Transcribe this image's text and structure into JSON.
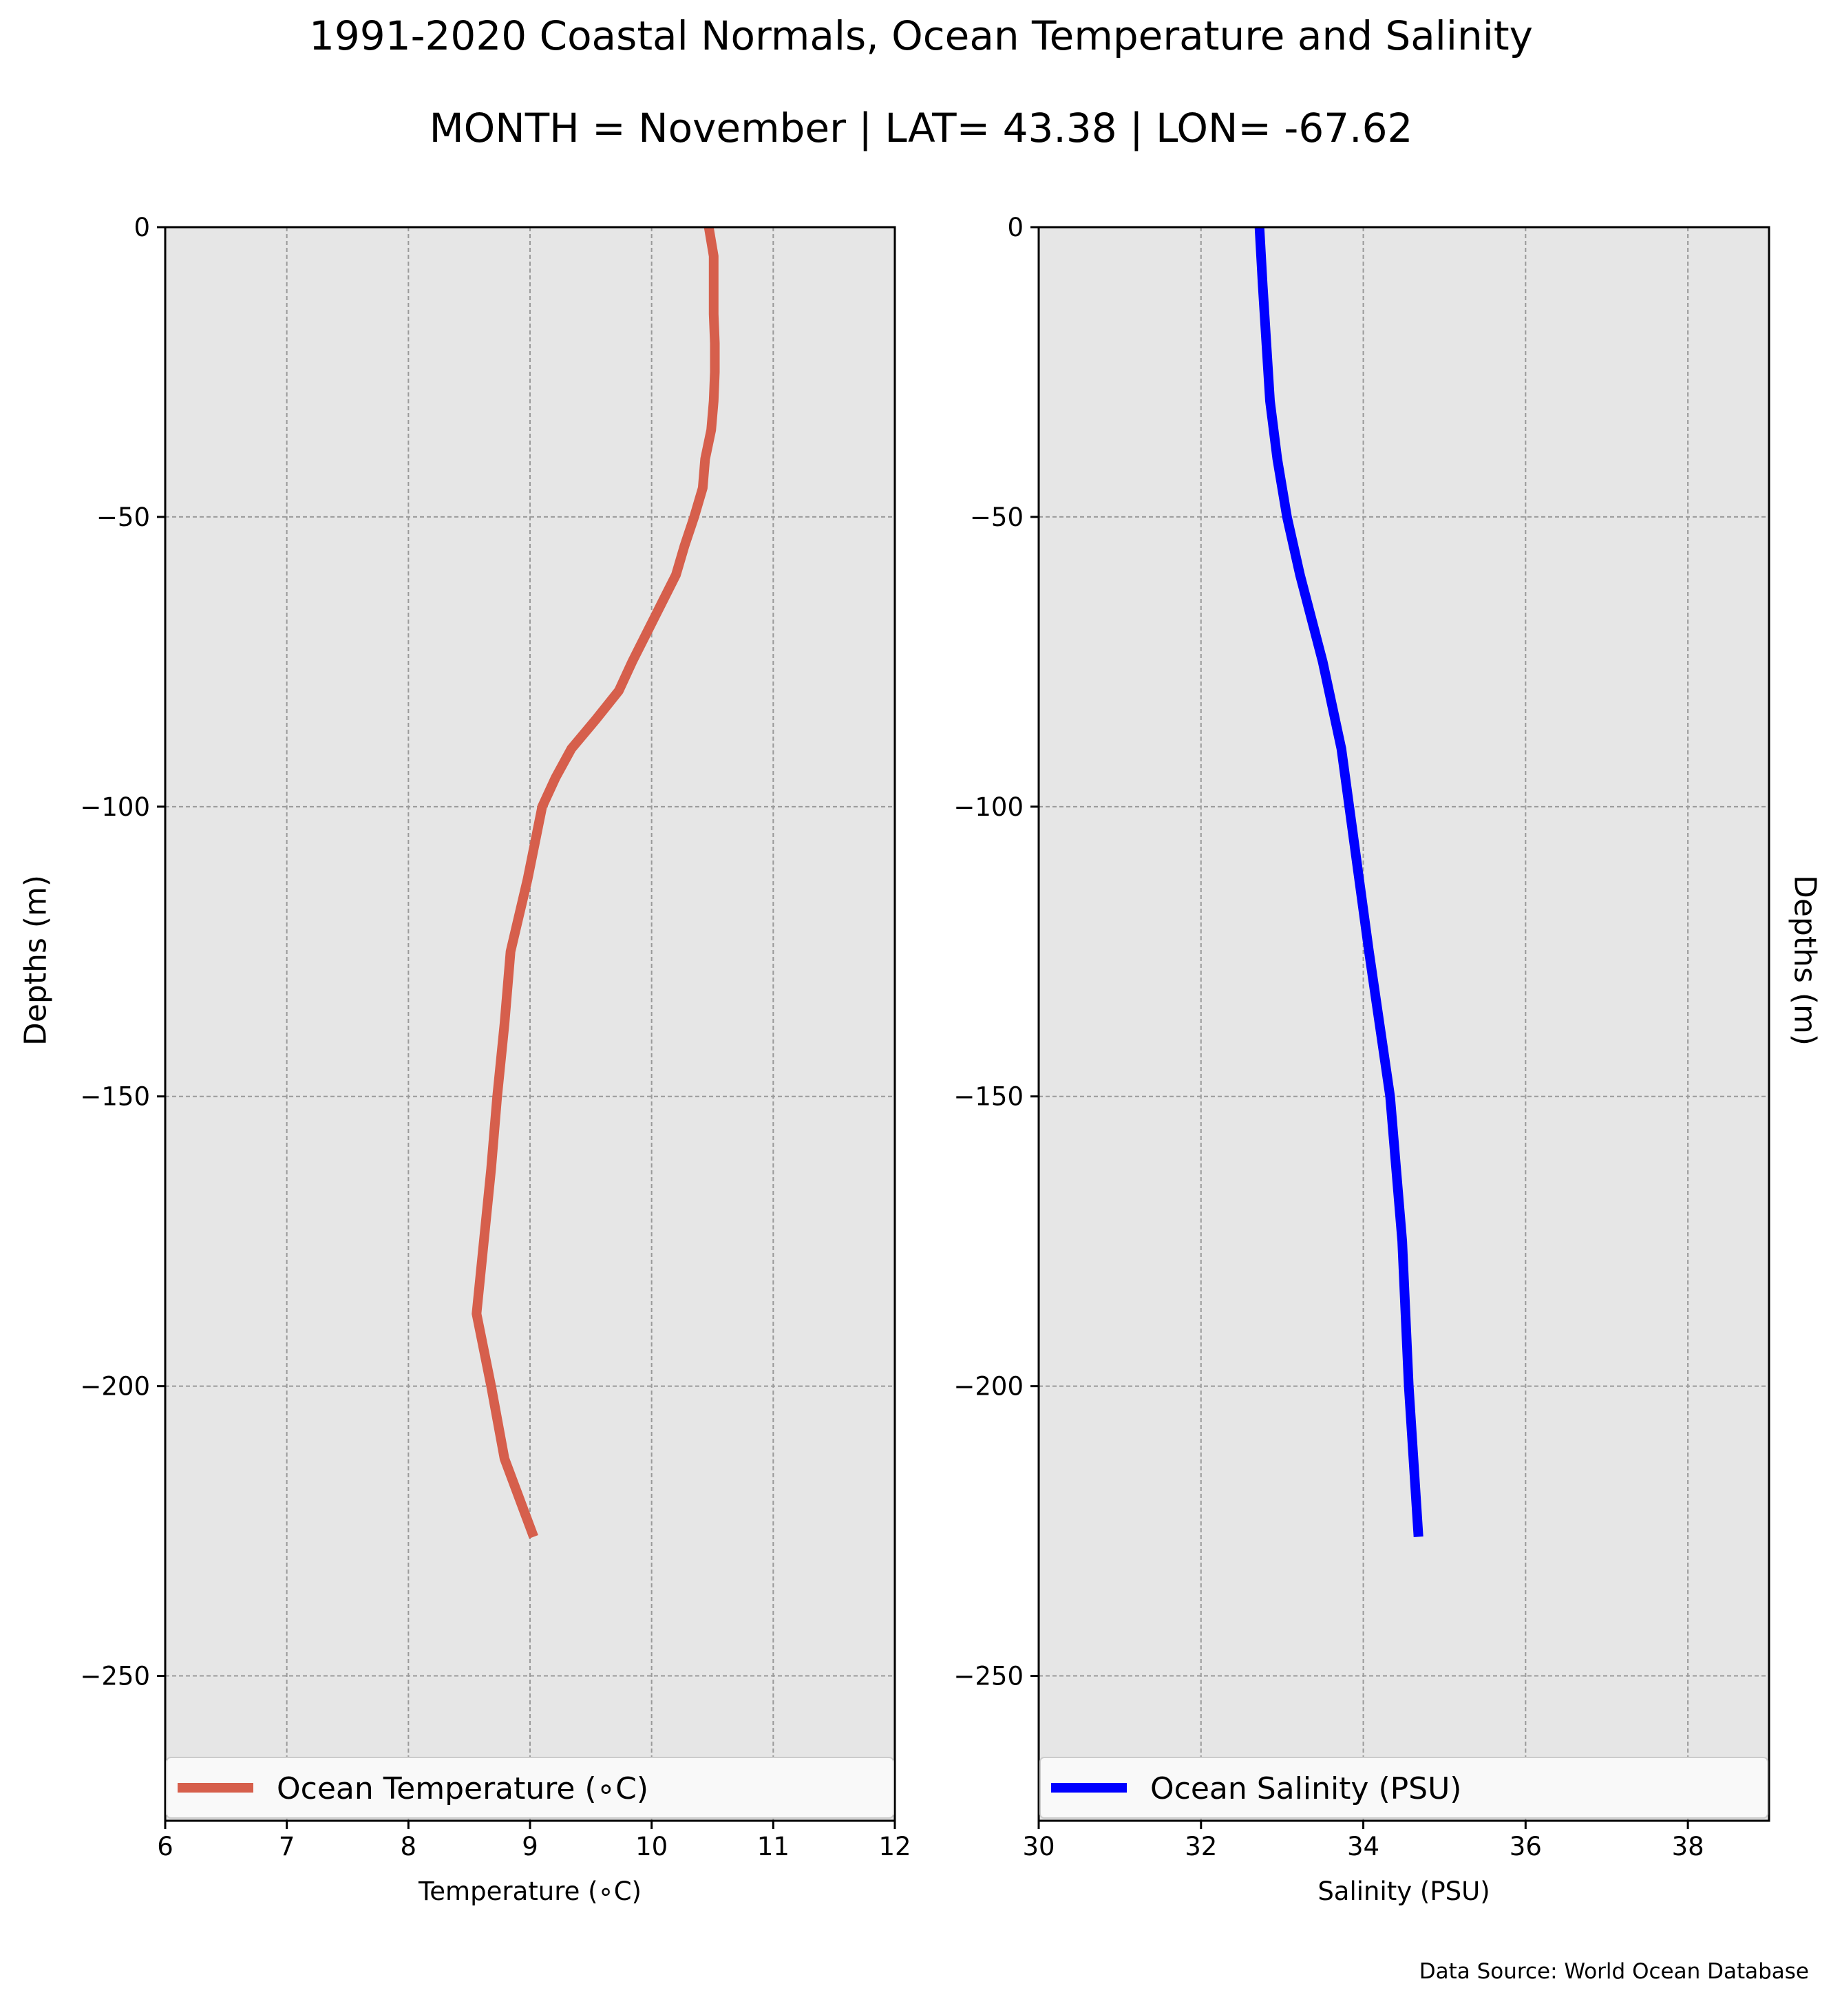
{
  "figure": {
    "title": "1991-2020 Coastal Normals, Ocean Temperature and Salinity",
    "subtitle": "MONTH = November | LAT= 43.38 | LON= -67.62",
    "source": "Data Source: World Ocean Database",
    "background": "#ffffff",
    "plot_background": "#e6e6e6"
  },
  "chart_data": [
    {
      "type": "line",
      "xlabel": "Temperature (∘C)",
      "ylabel": "Depths (m)",
      "xlim": [
        6,
        12
      ],
      "ylim": [
        -275,
        0
      ],
      "xticks": [
        6,
        7,
        8,
        9,
        10,
        11,
        12
      ],
      "yticks": [
        0,
        -50,
        -100,
        -150,
        -200,
        -250
      ],
      "grid": true,
      "legend_position": "bottom",
      "series": [
        {
          "name": "Ocean Temperature (∘C)",
          "color": "#d65f4c",
          "x": [
            10.47,
            10.51,
            10.51,
            10.51,
            10.52,
            10.52,
            10.51,
            10.49,
            10.44,
            10.42,
            10.35,
            10.27,
            10.2,
            10.08,
            9.96,
            9.84,
            9.73,
            9.54,
            9.34,
            9.21,
            9.1,
            8.98,
            8.84,
            8.79,
            8.73,
            8.68,
            8.62,
            8.56,
            8.68,
            8.79,
            9.03
          ],
          "y": [
            0,
            -5,
            -10,
            -15,
            -20,
            -25,
            -30,
            -35,
            -40,
            -45,
            -50,
            -55,
            -60,
            -65,
            -70,
            -75,
            -80,
            -85,
            -90,
            -95,
            -100,
            -112.5,
            -125,
            -137.5,
            -150,
            -162.5,
            -175,
            -187.5,
            -200,
            -212.5,
            -226
          ]
        }
      ]
    },
    {
      "type": "line",
      "xlabel": "Salinity (PSU)",
      "ylabel": "Depths (m)",
      "xlim": [
        30,
        39
      ],
      "ylim": [
        -275,
        0
      ],
      "xticks": [
        30,
        32,
        34,
        36,
        38
      ],
      "yticks": [
        0,
        -50,
        -100,
        -150,
        -200,
        -250
      ],
      "grid": true,
      "legend_position": "bottom",
      "series": [
        {
          "name": "Ocean Salinity (PSU)",
          "color": "#0000ff",
          "x": [
            32.72,
            32.76,
            32.85,
            32.94,
            33.06,
            33.22,
            33.5,
            33.73,
            34.07,
            34.33,
            34.48,
            34.56,
            34.68
          ],
          "y": [
            0,
            -10,
            -30,
            -40,
            -50,
            -60,
            -75,
            -90,
            -125,
            -150,
            -175,
            -200,
            -226
          ]
        }
      ]
    }
  ]
}
